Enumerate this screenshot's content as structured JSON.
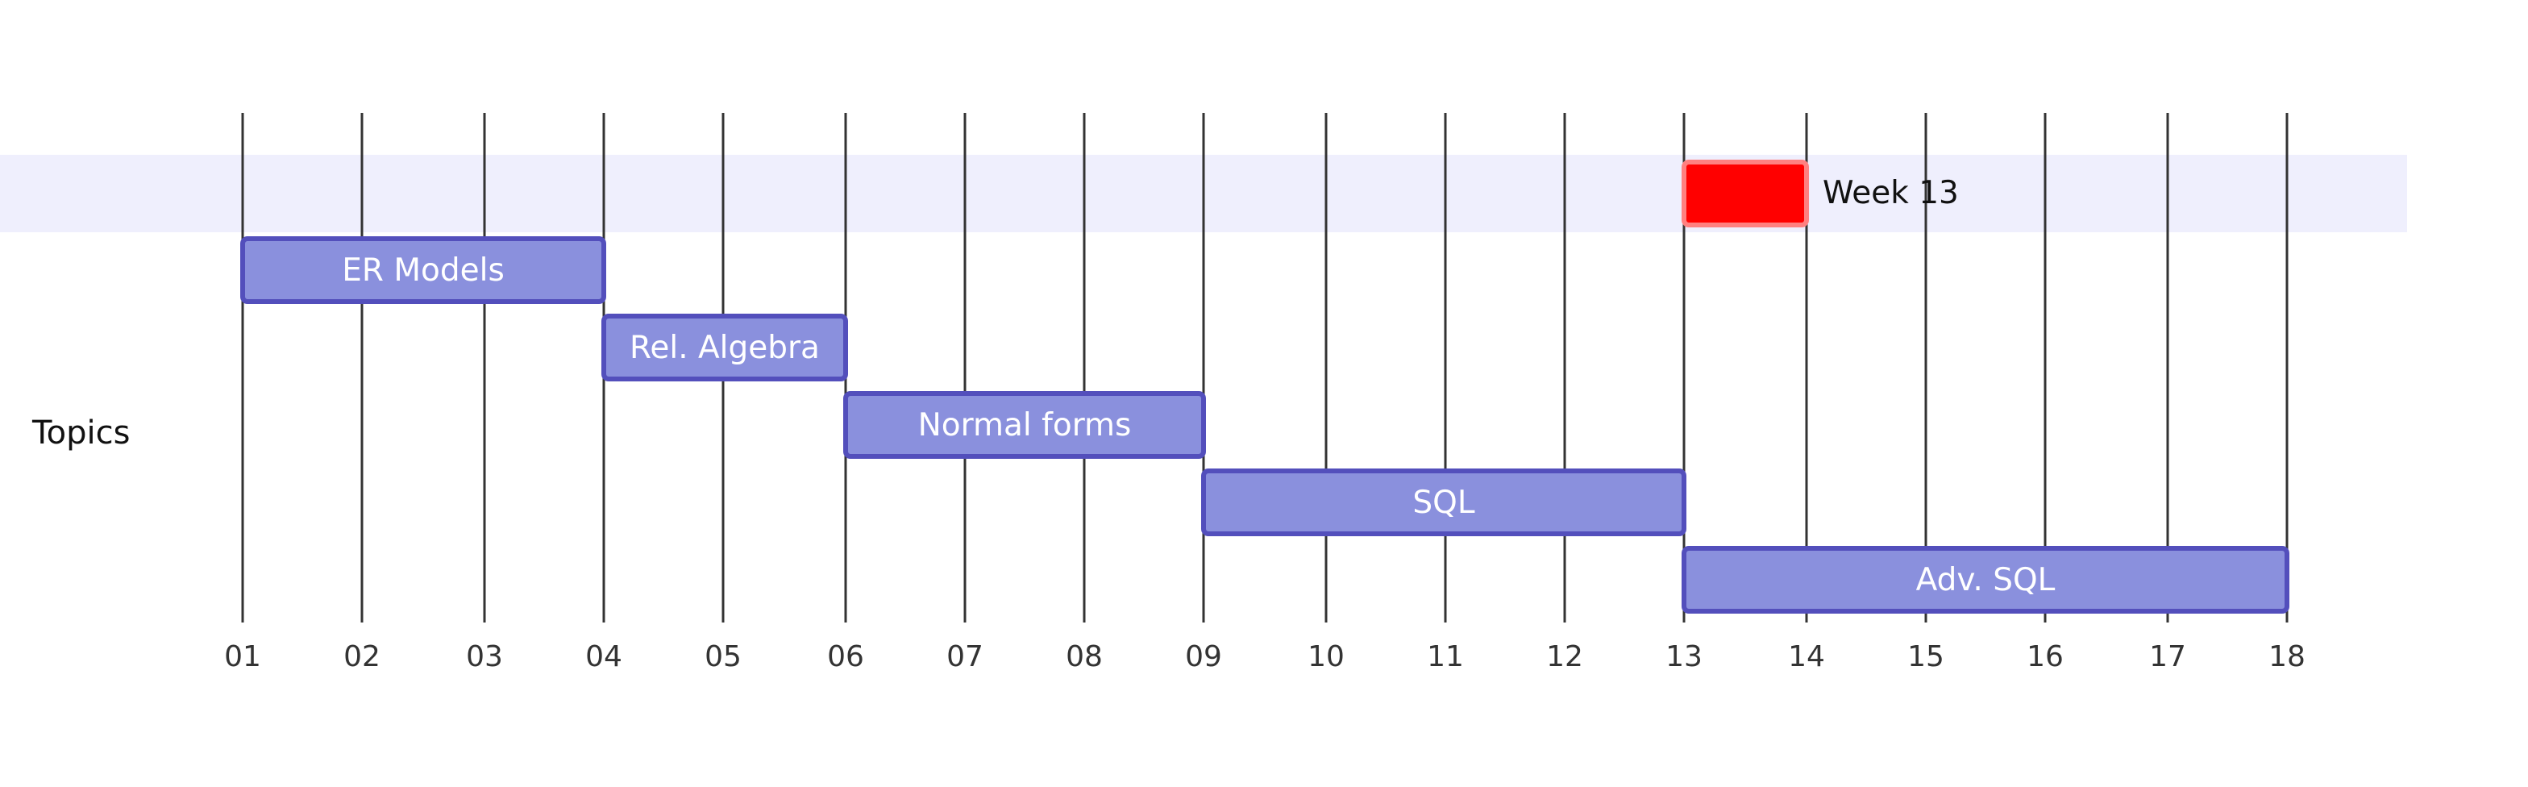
{
  "chart_data": {
    "type": "gantt",
    "section": "Topics",
    "x_unit": "week",
    "ticks": [
      "01",
      "02",
      "03",
      "04",
      "05",
      "06",
      "07",
      "08",
      "09",
      "10",
      "11",
      "12",
      "13",
      "14",
      "15",
      "16",
      "17",
      "18"
    ],
    "tasks": [
      {
        "label": "ER Models",
        "start": 1,
        "end": 4
      },
      {
        "label": "Rel. Algebra",
        "start": 4,
        "end": 6
      },
      {
        "label": "Normal forms",
        "start": 6,
        "end": 9
      },
      {
        "label": "SQL",
        "start": 9,
        "end": 13
      },
      {
        "label": "Adv. SQL",
        "start": 13,
        "end": 18
      }
    ],
    "milestones": [
      {
        "label": "Week 13",
        "start": 13,
        "end": 14,
        "color": "#ff0000"
      }
    ],
    "colors": {
      "task_fill": "#8a90dd",
      "task_border": "#534fbc",
      "milestone_fill": "#ff0000",
      "milestone_border": "#ff8080",
      "band": "#efeffd"
    }
  }
}
